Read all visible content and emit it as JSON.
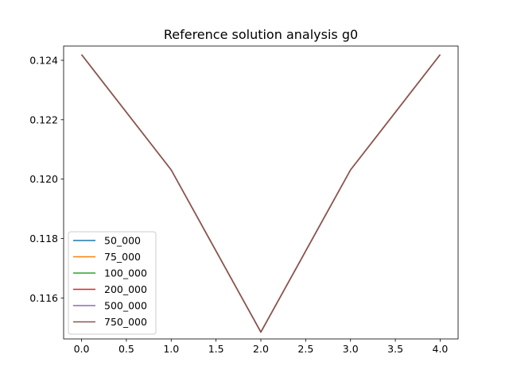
{
  "chart_data": {
    "type": "line",
    "title": "Reference solution analysis g0",
    "xlabel": "",
    "ylabel": "",
    "xlim": [
      -0.2,
      4.2
    ],
    "ylim": [
      0.11462,
      0.12448
    ],
    "xticks": [
      0.0,
      0.5,
      1.0,
      1.5,
      2.0,
      2.5,
      3.0,
      3.5,
      4.0
    ],
    "xtick_labels": [
      "0.0",
      "0.5",
      "1.0",
      "1.5",
      "2.0",
      "2.5",
      "3.0",
      "3.5",
      "4.0"
    ],
    "yticks": [
      0.116,
      0.118,
      0.12,
      0.122,
      0.124
    ],
    "ytick_labels": [
      "0.116",
      "0.118",
      "0.120",
      "0.122",
      "0.124"
    ],
    "grid": false,
    "legend_position": "lower-left",
    "x": [
      0,
      1,
      2,
      3,
      4
    ],
    "series": [
      {
        "name": "50_000",
        "color": "#1f77b4",
        "values": [
          0.12419,
          0.12031,
          0.11485,
          0.12031,
          0.12419
        ]
      },
      {
        "name": "75_000",
        "color": "#ff7f0e",
        "values": [
          0.12419,
          0.12031,
          0.11485,
          0.12031,
          0.12419
        ]
      },
      {
        "name": "100_000",
        "color": "#2ca02c",
        "values": [
          0.12419,
          0.12031,
          0.11485,
          0.12031,
          0.12419
        ]
      },
      {
        "name": "200_000",
        "color": "#d62728",
        "values": [
          0.12419,
          0.12031,
          0.11485,
          0.12031,
          0.12419
        ]
      },
      {
        "name": "500_000",
        "color": "#9467bd",
        "values": [
          0.12419,
          0.12031,
          0.11485,
          0.12031,
          0.12419
        ]
      },
      {
        "name": "750_000",
        "color": "#8c564b",
        "values": [
          0.12419,
          0.12031,
          0.11485,
          0.12031,
          0.12419
        ]
      }
    ]
  }
}
